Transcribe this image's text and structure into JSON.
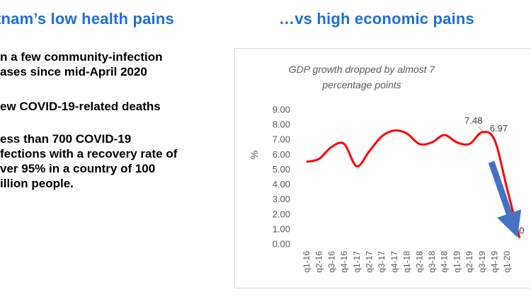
{
  "headings": {
    "left": "tnam’s low health pains",
    "right": "…vs high economic pains"
  },
  "bullets": [
    {
      "lines": [
        "n a few community-infection",
        "ases since mid-April 2020"
      ]
    },
    {
      "lines": [
        "ew COVID-19-related deaths"
      ]
    },
    {
      "lines": [
        "ess than 700 COVID-19",
        "fections with a recovery rate of",
        "ver 95% in a country of 100",
        "illion people."
      ]
    }
  ],
  "chart_data": {
    "type": "line",
    "title": "GDP growth dropped by almost 7 percentage points",
    "title_lines": [
      "GDP growth dropped by almost 7",
      "percentage points"
    ],
    "ylabel": "%",
    "xlabel": "",
    "ylim": [
      0,
      9
    ],
    "yticks": [
      "9.00",
      "8.00",
      "7.00",
      "6.00",
      "5.00",
      "4.00",
      "3.00",
      "2.00",
      "1.00",
      "0.00"
    ],
    "categories": [
      "q1-16",
      "q2-16",
      "q3-16",
      "q4-16",
      "q1-17",
      "q2-17",
      "q3-17",
      "q4-17",
      "q1-18",
      "q2-18",
      "q3-18",
      "q4-18",
      "q1-19",
      "q2-19",
      "q3-19",
      "q4-19",
      "q1-20"
    ],
    "series": [
      {
        "color": "#ff0000",
        "values": [
          5.5,
          5.7,
          6.5,
          6.7,
          5.2,
          6.2,
          7.2,
          7.6,
          7.4,
          6.7,
          6.8,
          7.3,
          6.8,
          6.7,
          7.48,
          6.97,
          3.7
        ]
      }
    ],
    "extra_points": [
      {
        "x": "q2-20",
        "value": 0.4
      }
    ],
    "data_labels": [
      {
        "category": "q3-19",
        "text": "7.48"
      },
      {
        "category": "q4-19",
        "text": "6.97"
      },
      {
        "category": "q2-20",
        "text": "0"
      }
    ],
    "legend": "none",
    "grid": false,
    "arrow_color": "#4472c4"
  }
}
